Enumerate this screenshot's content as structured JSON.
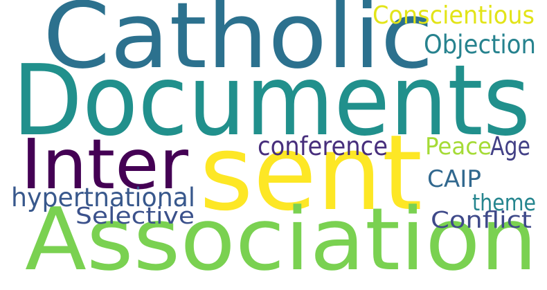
{
  "words": [
    {
      "text": "Catholic",
      "color": "#2c718e"
    },
    {
      "text": "Documents",
      "color": "#21908c"
    },
    {
      "text": "Inter",
      "color": "#440154"
    },
    {
      "text": "sent",
      "color": "#fde725"
    },
    {
      "text": "Association",
      "color": "#7ad151"
    },
    {
      "text": "Conscientious",
      "color": "#e2e418"
    },
    {
      "text": "Objection",
      "color": "#26828e"
    },
    {
      "text": "conference",
      "color": "#472e7c"
    },
    {
      "text": "Peace",
      "color": "#a5db36"
    },
    {
      "text": "Age",
      "color": "#424086"
    },
    {
      "text": "CAIP",
      "color": "#31688e"
    },
    {
      "text": "hypertnational",
      "color": "#38588c"
    },
    {
      "text": "theme",
      "color": "#25858e"
    },
    {
      "text": "Selective",
      "color": "#3b518b"
    },
    {
      "text": "Conflict",
      "color": "#3e4989"
    }
  ]
}
